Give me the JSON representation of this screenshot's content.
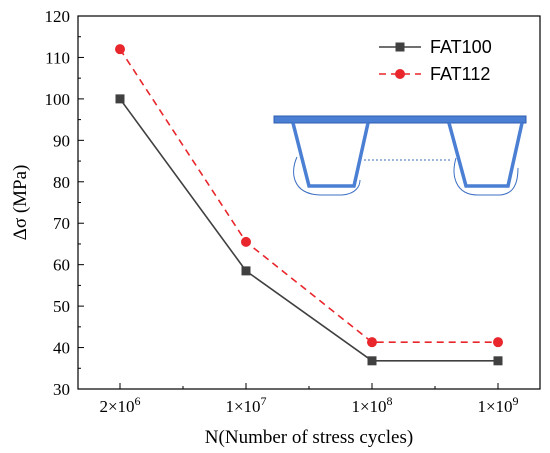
{
  "chart_data": {
    "type": "line",
    "categories": [
      "2×10⁶",
      "1×10⁷",
      "1×10⁸",
      "1×10⁹"
    ],
    "category_parts": [
      {
        "base": "2×10",
        "exp": "6"
      },
      {
        "base": "1×10",
        "exp": "7"
      },
      {
        "base": "1×10",
        "exp": "8"
      },
      {
        "base": "1×10",
        "exp": "9"
      }
    ],
    "series": [
      {
        "name": "FAT100",
        "values": [
          100,
          58.5,
          36.8,
          36.8
        ],
        "color": "#404040",
        "marker": "square",
        "dash": "solid"
      },
      {
        "name": "FAT112",
        "values": [
          112,
          65.5,
          41.3,
          41.3
        ],
        "color": "#e8262b",
        "marker": "circle",
        "dash": "dashed"
      }
    ],
    "xlabel": "N(Number of stress cycles)",
    "ylabel": "Δσ (MPa)",
    "ylim": [
      30,
      120
    ],
    "yticks": [
      30,
      40,
      50,
      60,
      70,
      80,
      90,
      100,
      110,
      120
    ],
    "grid": false,
    "legend_position": "top-right"
  },
  "inset": {
    "description_icon": "bridge-deck-cross-section-icon",
    "deck_color": "#4a7fd4",
    "outline_color": "#3b6fc2"
  }
}
